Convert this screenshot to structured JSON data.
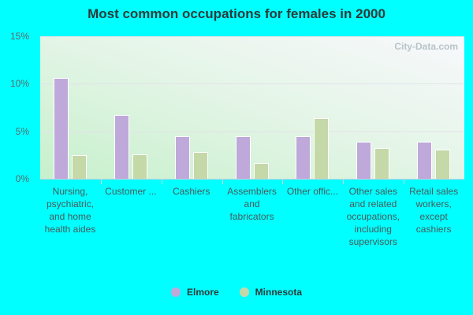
{
  "chart_data": {
    "type": "bar",
    "title": "Most common occupations for females in 2000",
    "xlabel": "",
    "ylabel": "",
    "ylim": [
      0,
      15
    ],
    "yticks": [
      "0%",
      "5%",
      "10%",
      "15%"
    ],
    "grid": true,
    "legend_position": "bottom",
    "categories": [
      "Nursing, psychiatric, and home health aides",
      "Customer ...",
      "Cashiers",
      "Assemblers and fabricators",
      "Other offic...",
      "Other sales and related occupations, including supervisors",
      "Retail sales workers, except cashiers"
    ],
    "series": [
      {
        "name": "Elmore",
        "color": "#bea9da",
        "values": [
          10.6,
          6.7,
          4.5,
          4.5,
          4.5,
          3.9,
          3.9
        ]
      },
      {
        "name": "Minnesota",
        "color": "#c4d8a8",
        "values": [
          2.5,
          2.6,
          2.8,
          1.7,
          6.4,
          3.2,
          3.1
        ]
      }
    ]
  },
  "watermark": "City-Data.com",
  "ytick_labels": [
    "15%",
    "10%",
    "5%",
    "0%"
  ]
}
